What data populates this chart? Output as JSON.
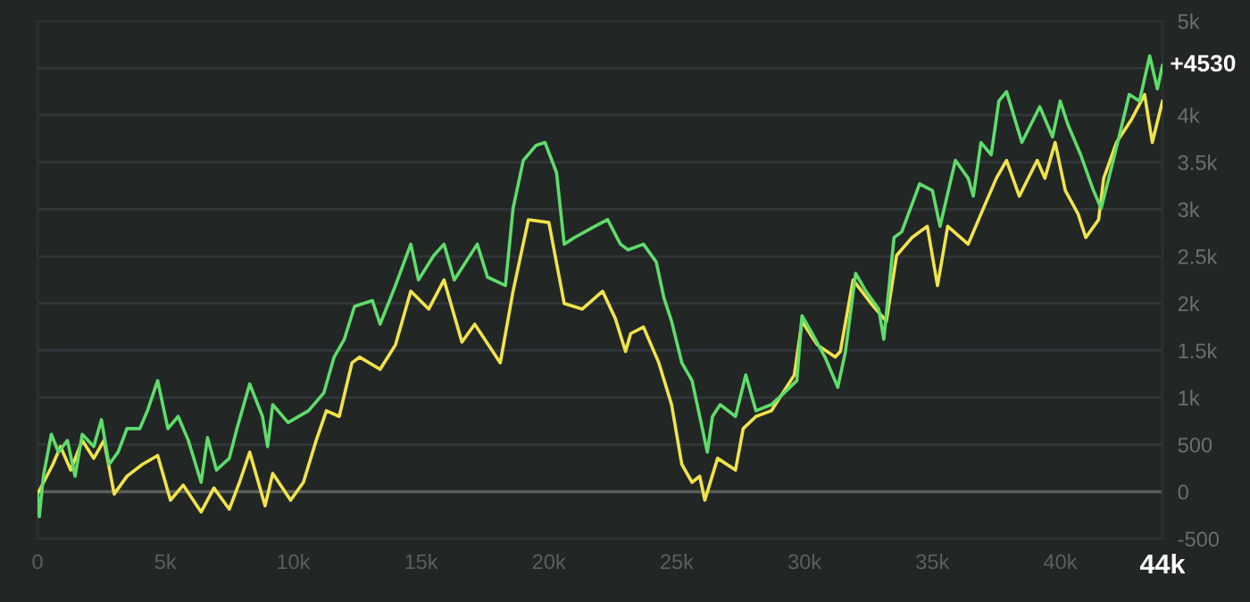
{
  "chart_data": {
    "type": "line",
    "xlim": [
      0,
      44000
    ],
    "ylim": [
      -500,
      5000
    ],
    "xticks": [
      0,
      {
        "value": 5000,
        "label": "5k"
      },
      {
        "value": 10000,
        "label": "10k"
      },
      {
        "value": 15000,
        "label": "15k"
      },
      {
        "value": 20000,
        "label": "20k"
      },
      {
        "value": 25000,
        "label": "25k"
      },
      {
        "value": 30000,
        "label": "30k"
      },
      {
        "value": 35000,
        "label": "35k"
      },
      {
        "value": 40000,
        "label": "40k"
      },
      {
        "value": 44000,
        "label": "44k"
      }
    ],
    "yticks": [
      -500,
      0,
      500,
      {
        "value": 1000,
        "label": "1k"
      },
      {
        "value": 1500,
        "label": "1.5k"
      },
      {
        "value": 2000,
        "label": "2k"
      },
      {
        "value": 2500,
        "label": "2.5k"
      },
      {
        "value": 3000,
        "label": "3k"
      },
      {
        "value": 3500,
        "label": "3.5k"
      },
      {
        "value": 4000,
        "label": "4k"
      },
      {
        "value": 4500,
        "label": null
      },
      {
        "value": 5000,
        "label": "5k"
      }
    ],
    "grid": "y",
    "legend": false,
    "marker": "none",
    "line_style": "solid",
    "ref_lines": [
      {
        "axis": "y",
        "value": 0,
        "color": "#5a5f5d"
      }
    ],
    "annotations": [
      {
        "text": "+4530",
        "x": 44000,
        "y": 4530
      }
    ],
    "series": [
      {
        "color": "#5fdc6b",
        "x": [
          0,
          70,
          230,
          540,
          820,
          1170,
          1470,
          1750,
          2200,
          2500,
          2800,
          3150,
          3500,
          4000,
          4300,
          4700,
          5100,
          5500,
          5900,
          6400,
          6650,
          7000,
          7500,
          7800,
          8300,
          8800,
          9000,
          9200,
          9800,
          10600,
          11200,
          11600,
          12000,
          12400,
          13100,
          13400,
          14000,
          14600,
          14900,
          15500,
          15900,
          16300,
          17200,
          17600,
          18300,
          18600,
          19000,
          19500,
          19850,
          20300,
          20600,
          21000,
          21800,
          22300,
          22800,
          23100,
          23700,
          24200,
          24500,
          24800,
          25200,
          25600,
          25900,
          26200,
          26400,
          26700,
          27300,
          27700,
          28100,
          28700,
          29200,
          29700,
          29900,
          30300,
          30800,
          31300,
          31600,
          32000,
          32400,
          32900,
          33100,
          33500,
          33800,
          34500,
          35000,
          35300,
          35900,
          36400,
          36600,
          36900,
          37300,
          37600,
          37900,
          38500,
          39200,
          39700,
          40000,
          40300,
          40800,
          41300,
          41600,
          41900,
          42300,
          42700,
          43100,
          43500,
          43800,
          44000
        ],
        "values": [
          -25,
          -265,
          165,
          610,
          420,
          545,
          165,
          610,
          480,
          765,
          290,
          420,
          670,
          670,
          860,
          1180,
          670,
          800,
          545,
          100,
          575,
          230,
          355,
          670,
          1145,
          800,
          480,
          925,
          735,
          860,
          1050,
          1430,
          1620,
          1970,
          2030,
          1780,
          2190,
          2630,
          2250,
          2510,
          2630,
          2250,
          2630,
          2280,
          2190,
          3010,
          3520,
          3680,
          3710,
          3390,
          2630,
          2700,
          2820,
          2890,
          2630,
          2570,
          2630,
          2440,
          2060,
          1810,
          1370,
          1180,
          800,
          420,
          800,
          925,
          800,
          1240,
          860,
          925,
          1050,
          1180,
          1870,
          1680,
          1430,
          1110,
          1490,
          2320,
          2130,
          1940,
          1620,
          2700,
          2760,
          3270,
          3200,
          2820,
          3520,
          3330,
          3140,
          3710,
          3580,
          4150,
          4250,
          3710,
          4090,
          3770,
          4150,
          3900,
          3580,
          3200,
          3010,
          3330,
          3770,
          4220,
          4150,
          4630,
          4280,
          4530
        ]
      },
      {
        "color": "#f2e34a",
        "x": [
          0,
          600,
          900,
          1300,
          1750,
          2200,
          2600,
          3000,
          3500,
          4100,
          4700,
          5200,
          5700,
          6400,
          6900,
          7500,
          7900,
          8300,
          8900,
          9200,
          9900,
          10400,
          10900,
          11300,
          11800,
          12300,
          12600,
          13400,
          14000,
          14600,
          15300,
          15900,
          16600,
          17100,
          18100,
          18600,
          19200,
          20000,
          20600,
          21300,
          22100,
          22600,
          23000,
          23200,
          23700,
          24300,
          24800,
          25200,
          25600,
          25900,
          26100,
          26600,
          27300,
          27600,
          28100,
          28700,
          29600,
          29900,
          30500,
          31200,
          31400,
          31900,
          32600,
          33200,
          33600,
          34200,
          34800,
          35200,
          35600,
          36400,
          36900,
          37500,
          37900,
          38400,
          39100,
          39400,
          39800,
          40200,
          40700,
          41000,
          41500,
          41700,
          42200,
          42800,
          43300,
          43600,
          44000
        ],
        "values": [
          -25,
          290,
          480,
          230,
          545,
          355,
          545,
          -25,
          165,
          290,
          385,
          -90,
          70,
          -215,
          40,
          -185,
          100,
          420,
          -150,
          195,
          -90,
          100,
          545,
          860,
          800,
          1370,
          1430,
          1300,
          1560,
          2130,
          1940,
          2250,
          1590,
          1780,
          1370,
          2130,
          2890,
          2860,
          2000,
          1940,
          2130,
          1840,
          1490,
          1680,
          1750,
          1370,
          925,
          290,
          100,
          165,
          -90,
          355,
          230,
          670,
          800,
          860,
          1240,
          1810,
          1560,
          1430,
          1490,
          2250,
          2000,
          1810,
          2510,
          2700,
          2820,
          2190,
          2820,
          2630,
          2950,
          3330,
          3520,
          3140,
          3520,
          3330,
          3710,
          3200,
          2950,
          2700,
          2890,
          3330,
          3710,
          3960,
          4220,
          3710,
          4150
        ]
      }
    ]
  }
}
